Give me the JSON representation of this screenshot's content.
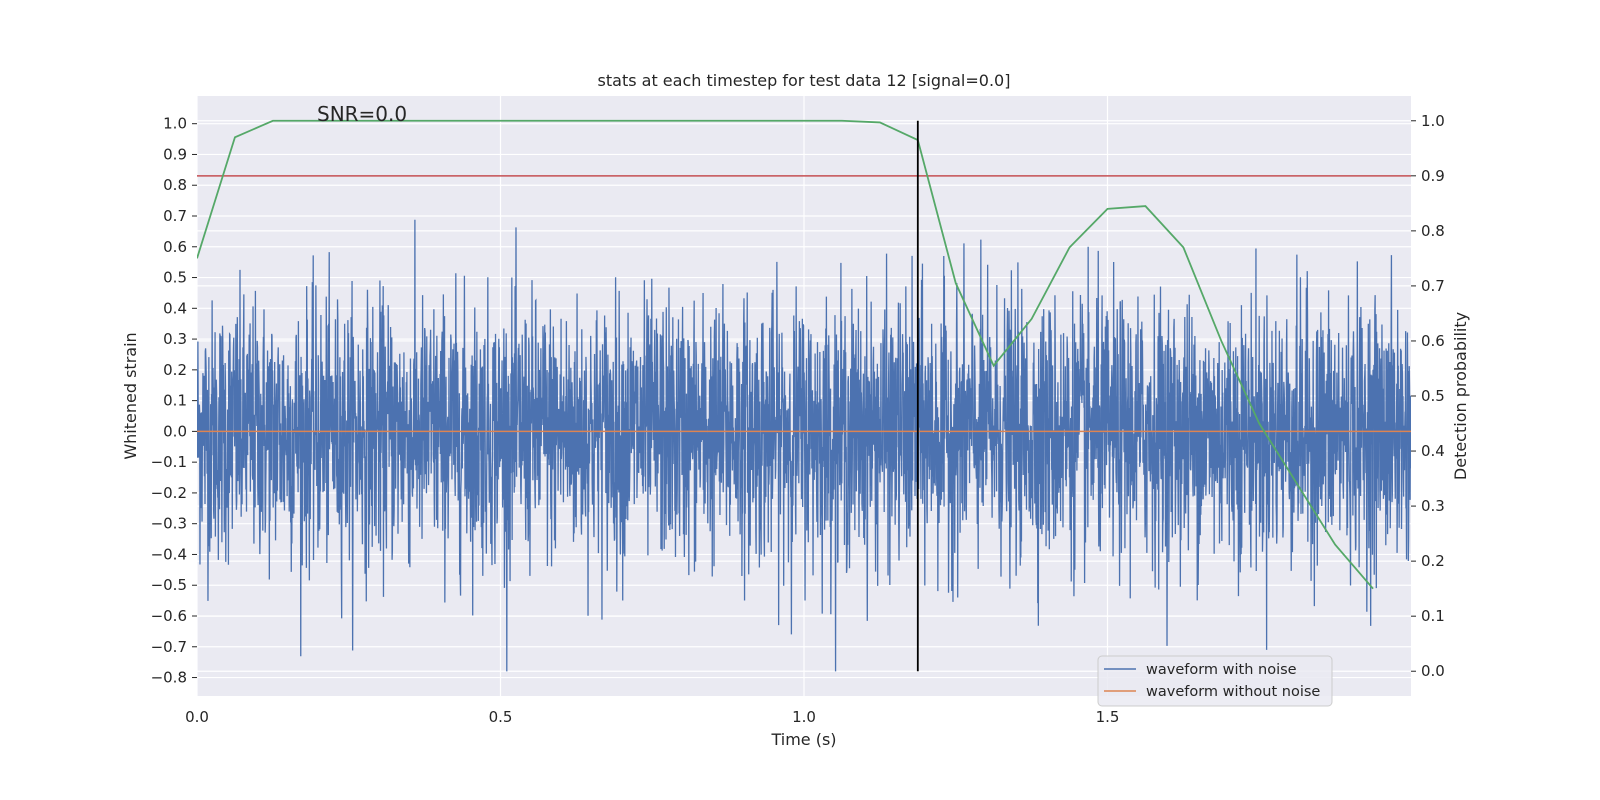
{
  "chart_data": {
    "type": "line",
    "title": "stats at each timestep for test data 12 [signal=0.0]",
    "annotation": "SNR=0.0",
    "xlabel": "Time (s)",
    "ylabel": "Whitened strain",
    "y2label": "Detection probability",
    "xlim": [
      0.0,
      2.0
    ],
    "ylim": [
      -0.86,
      1.09
    ],
    "y2lim": [
      -0.045,
      1.045
    ],
    "x_ticks": [
      "0.0",
      "0.5",
      "1.0",
      "1.5"
    ],
    "y_ticks": [
      "1.0",
      "0.9",
      "0.8",
      "0.7",
      "0.6",
      "0.5",
      "0.4",
      "0.3",
      "0.2",
      "0.1",
      "0.0",
      "-0.1",
      "-0.2",
      "-0.3",
      "-0.4",
      "-0.5",
      "-0.6",
      "-0.7",
      "-0.8"
    ],
    "y2_ticks": [
      "1.0",
      "0.9",
      "0.8",
      "0.7",
      "0.6",
      "0.5",
      "0.4",
      "0.3",
      "0.2",
      "0.1",
      "0.0"
    ],
    "grid": true,
    "legend_position": "lower-right",
    "series": [
      {
        "name": "waveform with noise",
        "color": "#4c72b0",
        "axis": "left",
        "style": "noise",
        "n_points": 4096,
        "amplitude_std": 0.21,
        "y_range": [
          -0.78,
          1.0
        ]
      },
      {
        "name": "waveform without noise",
        "color": "#dd8452",
        "axis": "left",
        "x": [
          0.0,
          2.0
        ],
        "y": [
          0.0,
          0.0
        ]
      },
      {
        "color": "#55a868",
        "axis": "right",
        "x": [
          0.0,
          0.0625,
          0.125,
          0.1875,
          0.25,
          0.3125,
          0.375,
          0.4375,
          0.5,
          0.5625,
          0.625,
          0.6875,
          0.75,
          0.8125,
          0.875,
          0.9375,
          1.0,
          1.0625,
          1.125,
          1.1875,
          1.25,
          1.3125,
          1.375,
          1.4375,
          1.5,
          1.5625,
          1.625,
          1.6875,
          1.75,
          1.8125,
          1.875,
          1.9375
        ],
        "y": [
          0.75,
          0.97,
          1.0,
          1.0,
          1.0,
          1.0,
          1.0,
          1.0,
          1.0,
          1.0,
          1.0,
          1.0,
          1.0,
          1.0,
          1.0,
          1.0,
          1.0,
          1.0,
          0.997,
          0.965,
          0.705,
          0.555,
          0.64,
          0.77,
          0.84,
          0.845,
          0.77,
          0.6,
          0.45,
          0.34,
          0.23,
          0.15
        ]
      }
    ],
    "threshold_line": {
      "axis": "right",
      "y": 0.9,
      "color": "#c44e52"
    },
    "vertical_marker": {
      "x": 1.1875,
      "y_from": 0.0,
      "y_to": 1.0,
      "axis": "right",
      "color": "#000000"
    }
  }
}
